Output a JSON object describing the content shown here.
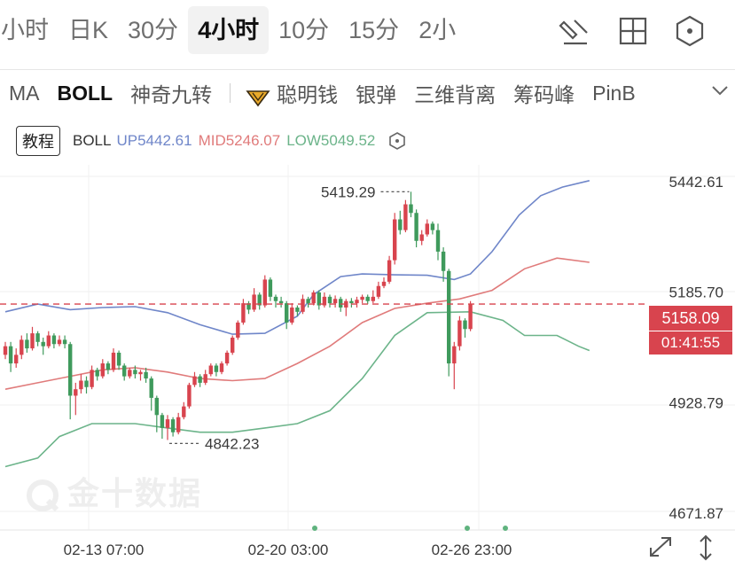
{
  "timeframes": [
    {
      "label": "小时",
      "active": false
    },
    {
      "label": "日K",
      "active": false
    },
    {
      "label": "30分",
      "active": false
    },
    {
      "label": "4小时",
      "active": true
    },
    {
      "label": "10分",
      "active": false
    },
    {
      "label": "15分",
      "active": false
    },
    {
      "label": "2小",
      "active": false
    }
  ],
  "toolbar_icons": [
    "draw-tool-icon",
    "grid-layout-icon",
    "hexagon-settings-icon"
  ],
  "indicators": {
    "items": [
      {
        "label": "MA",
        "active": false
      },
      {
        "label": "BOLL",
        "active": true
      }
    ],
    "special": [
      {
        "label": "聪明钱"
      },
      {
        "label": "银弹"
      },
      {
        "label": "三维背离"
      },
      {
        "label": "筹码峰"
      },
      {
        "label": "PinB"
      }
    ]
  },
  "legend": {
    "tutorial": "教程",
    "name": "BOLL",
    "up": "UP5442.61",
    "mid": "MID5246.07",
    "low": "LOW5049.52"
  },
  "watermark": "金十数据",
  "colors": {
    "up_band": "#6f86c9",
    "mid_band": "#e07b7b",
    "low_band": "#6cb48a",
    "bull": "#d8444e",
    "bear": "#3f9a5c",
    "price_line": "#d8444e"
  },
  "chart_data": {
    "type": "candlestick",
    "y_ticks": [
      "5442.61",
      "5185.70",
      "4928.79",
      "4671.87"
    ],
    "y_tick_values": [
      5442.61,
      5185.7,
      4928.79,
      4671.87
    ],
    "ylim": [
      4671.87,
      5442.61
    ],
    "x_ticks": [
      "02-13 07:00",
      "02-20 03:00",
      "02-26 23:00"
    ],
    "high_annotation": {
      "label": "5419.29",
      "value": 5419.29,
      "index": 75
    },
    "low_annotation": {
      "label": "4842.23",
      "value": 4842.23,
      "index": 30
    },
    "current_price": {
      "label": "5158.09",
      "value": 5158.09,
      "countdown": "01:41:55"
    },
    "candles": [
      [
        5040,
        5060,
        5030,
        5070
      ],
      [
        5060,
        5020,
        5000,
        5070
      ],
      [
        5020,
        5040,
        5010,
        5055
      ],
      [
        5040,
        5075,
        5030,
        5085
      ],
      [
        5075,
        5055,
        5045,
        5090
      ],
      [
        5055,
        5090,
        5050,
        5105
      ],
      [
        5090,
        5070,
        5060,
        5095
      ],
      [
        5070,
        5060,
        5040,
        5080
      ],
      [
        5060,
        5085,
        5055,
        5095
      ],
      [
        5085,
        5065,
        5055,
        5090
      ],
      [
        5065,
        5075,
        5060,
        5085
      ],
      [
        5075,
        5065,
        5055,
        5085
      ],
      [
        5065,
        4945,
        4890,
        5070
      ],
      [
        4945,
        4960,
        4900,
        4975
      ],
      [
        4960,
        4980,
        4950,
        4995
      ],
      [
        4980,
        4965,
        4950,
        4990
      ],
      [
        4965,
        5005,
        4960,
        5015
      ],
      [
        5005,
        4990,
        4980,
        5010
      ],
      [
        4990,
        5020,
        4985,
        5030
      ],
      [
        5020,
        5005,
        4995,
        5025
      ],
      [
        5005,
        5045,
        5000,
        5055
      ],
      [
        5045,
        5015,
        5005,
        5050
      ],
      [
        5015,
        4990,
        4980,
        5020
      ],
      [
        4990,
        5005,
        4985,
        5010
      ],
      [
        5005,
        4995,
        4985,
        5015
      ],
      [
        4995,
        5000,
        4980,
        5005
      ],
      [
        5000,
        4985,
        4975,
        5010
      ],
      [
        4985,
        4940,
        4910,
        4990
      ],
      [
        4940,
        4900,
        4860,
        4945
      ],
      [
        4900,
        4870,
        4845,
        4905
      ],
      [
        4870,
        4890,
        4842,
        4900
      ],
      [
        4890,
        4860,
        4850,
        4895
      ],
      [
        4860,
        4895,
        4855,
        4905
      ],
      [
        4895,
        4920,
        4890,
        4930
      ],
      [
        4920,
        4970,
        4915,
        4975
      ],
      [
        4970,
        4990,
        4965,
        5000
      ],
      [
        4990,
        4975,
        4965,
        4995
      ],
      [
        4975,
        4995,
        4970,
        5005
      ],
      [
        4995,
        5015,
        4990,
        5020
      ],
      [
        5015,
        5000,
        4990,
        5020
      ],
      [
        5000,
        5020,
        4995,
        5025
      ],
      [
        5020,
        5045,
        5015,
        5050
      ],
      [
        5045,
        5080,
        5040,
        5085
      ],
      [
        5080,
        5115,
        5075,
        5120
      ],
      [
        5115,
        5160,
        5110,
        5170
      ],
      [
        5160,
        5145,
        5135,
        5165
      ],
      [
        5145,
        5180,
        5140,
        5195
      ],
      [
        5180,
        5155,
        5145,
        5185
      ],
      [
        5155,
        5215,
        5150,
        5225
      ],
      [
        5215,
        5175,
        5165,
        5220
      ],
      [
        5175,
        5165,
        5150,
        5180
      ],
      [
        5165,
        5160,
        5150,
        5175
      ],
      [
        5160,
        5115,
        5100,
        5165
      ],
      [
        5115,
        5150,
        5110,
        5160
      ],
      [
        5150,
        5140,
        5130,
        5155
      ],
      [
        5140,
        5170,
        5135,
        5180
      ],
      [
        5170,
        5160,
        5150,
        5175
      ],
      [
        5160,
        5185,
        5155,
        5190
      ],
      [
        5185,
        5155,
        5145,
        5190
      ],
      [
        5155,
        5175,
        5150,
        5185
      ],
      [
        5175,
        5160,
        5150,
        5180
      ],
      [
        5160,
        5170,
        5150,
        5178
      ],
      [
        5170,
        5150,
        5140,
        5175
      ],
      [
        5150,
        5165,
        5130,
        5170
      ],
      [
        5165,
        5160,
        5150,
        5172
      ],
      [
        5160,
        5168,
        5150,
        5175
      ],
      [
        5168,
        5175,
        5160,
        5180
      ],
      [
        5175,
        5165,
        5158,
        5180
      ],
      [
        5165,
        5175,
        5160,
        5190
      ],
      [
        5175,
        5200,
        5170,
        5210
      ],
      [
        5200,
        5210,
        5195,
        5220
      ],
      [
        5210,
        5260,
        5205,
        5270
      ],
      [
        5260,
        5355,
        5250,
        5370
      ],
      [
        5355,
        5330,
        5320,
        5375
      ],
      [
        5330,
        5390,
        5325,
        5400
      ],
      [
        5390,
        5370,
        5360,
        5419.29
      ],
      [
        5370,
        5305,
        5290,
        5378
      ],
      [
        5305,
        5320,
        5295,
        5330
      ],
      [
        5320,
        5345,
        5315,
        5355
      ],
      [
        5345,
        5330,
        5320,
        5350
      ],
      [
        5330,
        5280,
        5260,
        5345
      ],
      [
        5280,
        5235,
        5210,
        5290
      ],
      [
        5235,
        5020,
        4990,
        5240
      ],
      [
        5020,
        5060,
        4960,
        5070
      ],
      [
        5060,
        5120,
        5050,
        5130
      ],
      [
        5120,
        5100,
        5080,
        5125
      ],
      [
        5100,
        5158,
        5095,
        5165
      ]
    ],
    "boll_up": [
      [
        0,
        5140
      ],
      [
        6,
        5158
      ],
      [
        12,
        5145
      ],
      [
        18,
        5150
      ],
      [
        24,
        5152
      ],
      [
        30,
        5138
      ],
      [
        36,
        5110
      ],
      [
        42,
        5088
      ],
      [
        48,
        5090
      ],
      [
        54,
        5130
      ],
      [
        57,
        5180
      ],
      [
        62,
        5222
      ],
      [
        66,
        5228
      ],
      [
        72,
        5226
      ],
      [
        78,
        5225
      ],
      [
        83,
        5215
      ],
      [
        86,
        5228
      ],
      [
        90,
        5280
      ],
      [
        95,
        5365
      ],
      [
        99,
        5410
      ],
      [
        103,
        5430
      ],
      [
        108,
        5445
      ]
    ],
    "boll_mid": [
      [
        0,
        4960
      ],
      [
        6,
        4975
      ],
      [
        12,
        4990
      ],
      [
        18,
        5005
      ],
      [
        24,
        5010
      ],
      [
        30,
        5000
      ],
      [
        36,
        4985
      ],
      [
        42,
        4980
      ],
      [
        48,
        4985
      ],
      [
        54,
        5020
      ],
      [
        60,
        5060
      ],
      [
        66,
        5115
      ],
      [
        72,
        5148
      ],
      [
        78,
        5160
      ],
      [
        84,
        5170
      ],
      [
        90,
        5190
      ],
      [
        96,
        5240
      ],
      [
        102,
        5265
      ],
      [
        108,
        5255
      ]
    ],
    "boll_low": [
      [
        0,
        4780
      ],
      [
        6,
        4800
      ],
      [
        10,
        4850
      ],
      [
        16,
        4880
      ],
      [
        24,
        4880
      ],
      [
        30,
        4870
      ],
      [
        36,
        4860
      ],
      [
        42,
        4860
      ],
      [
        48,
        4870
      ],
      [
        54,
        4880
      ],
      [
        60,
        4910
      ],
      [
        66,
        4985
      ],
      [
        72,
        5085
      ],
      [
        78,
        5138
      ],
      [
        86,
        5140
      ],
      [
        92,
        5120
      ],
      [
        96,
        5085
      ],
      [
        102,
        5085
      ],
      [
        106,
        5060
      ],
      [
        108,
        5050
      ]
    ]
  }
}
